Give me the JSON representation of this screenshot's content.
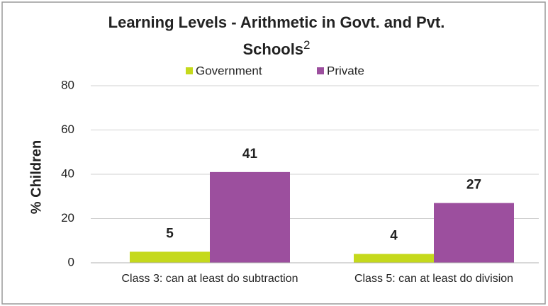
{
  "chart_data": {
    "type": "bar",
    "title": "Learning Levels  - Arithmetic in Govt. and Pvt. Schools",
    "title_superscript": "2",
    "y_label": "% Children",
    "categories": [
      "Class 3: can  at least do subtraction",
      "Class 5: can at least do division"
    ],
    "series": [
      {
        "name": "Government",
        "color": "#c5d91c",
        "values": [
          5,
          4
        ]
      },
      {
        "name": "Private",
        "color": "#9c4f9e",
        "values": [
          41,
          27
        ]
      }
    ],
    "ylim": [
      0,
      80
    ],
    "yticks": [
      0,
      20,
      40,
      60,
      80
    ],
    "grid": true,
    "legend": "top"
  }
}
